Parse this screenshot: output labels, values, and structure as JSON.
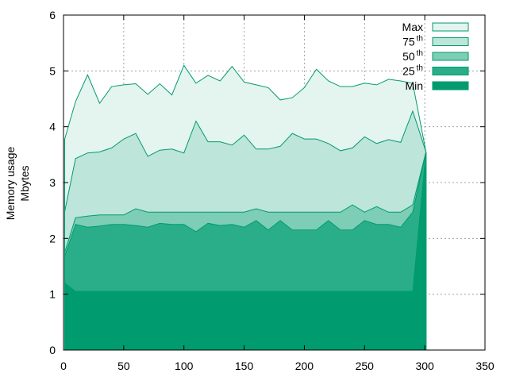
{
  "chart_data": {
    "type": "area",
    "title": "",
    "xlabel": "",
    "ylabel_lines": [
      "Memory usage",
      "Mbytes"
    ],
    "xlim": [
      0,
      350
    ],
    "ylim": [
      0,
      6
    ],
    "x_ticks": [
      "0",
      "50",
      "100",
      "150",
      "200",
      "250",
      "300",
      "350"
    ],
    "y_ticks": [
      "0",
      "1",
      "2",
      "3",
      "4",
      "5",
      "6"
    ],
    "grid": true,
    "legend_position": "top-right",
    "x": [
      1,
      10,
      20,
      30,
      40,
      50,
      60,
      70,
      80,
      90,
      100,
      110,
      120,
      130,
      140,
      150,
      160,
      170,
      180,
      190,
      200,
      210,
      220,
      230,
      240,
      250,
      260,
      270,
      280,
      290,
      301
    ],
    "series": [
      {
        "name": "Max",
        "sup": "",
        "color": "#e4f4ef",
        "values": [
          3.78,
          4.45,
          4.93,
          4.42,
          4.72,
          4.75,
          4.77,
          4.58,
          4.77,
          4.57,
          5.1,
          4.78,
          4.92,
          4.82,
          5.08,
          4.8,
          4.75,
          4.7,
          4.48,
          4.52,
          4.7,
          5.03,
          4.82,
          4.72,
          4.72,
          4.78,
          4.75,
          4.85,
          4.82,
          4.78,
          3.55
        ]
      },
      {
        "name": "75",
        "sup": "th",
        "color": "#bde5da",
        "values": [
          2.48,
          3.43,
          3.53,
          3.55,
          3.62,
          3.78,
          3.88,
          3.47,
          3.58,
          3.6,
          3.53,
          4.1,
          3.73,
          3.73,
          3.67,
          3.85,
          3.6,
          3.6,
          3.65,
          3.88,
          3.78,
          3.78,
          3.7,
          3.57,
          3.62,
          3.82,
          3.7,
          3.77,
          3.72,
          4.28,
          3.55
        ]
      },
      {
        "name": "50",
        "sup": "th",
        "color": "#7dceb4",
        "values": [
          1.75,
          2.37,
          2.4,
          2.42,
          2.42,
          2.42,
          2.53,
          2.47,
          2.47,
          2.47,
          2.47,
          2.47,
          2.47,
          2.47,
          2.47,
          2.47,
          2.53,
          2.47,
          2.47,
          2.47,
          2.47,
          2.47,
          2.47,
          2.47,
          2.6,
          2.47,
          2.57,
          2.47,
          2.47,
          2.6,
          3.55
        ]
      },
      {
        "name": "25",
        "sup": "th",
        "color": "#2aae89",
        "values": [
          1.68,
          2.25,
          2.2,
          2.22,
          2.25,
          2.25,
          2.23,
          2.2,
          2.27,
          2.25,
          2.25,
          2.12,
          2.27,
          2.23,
          2.25,
          2.2,
          2.32,
          2.15,
          2.32,
          2.15,
          2.15,
          2.15,
          2.32,
          2.15,
          2.15,
          2.32,
          2.25,
          2.25,
          2.2,
          2.47,
          3.55
        ]
      },
      {
        "name": "Min",
        "sup": "",
        "color": "#009b6f",
        "values": [
          1.2,
          1.05,
          1.05,
          1.05,
          1.05,
          1.05,
          1.05,
          1.05,
          1.05,
          1.05,
          1.05,
          1.05,
          1.05,
          1.05,
          1.05,
          1.05,
          1.05,
          1.05,
          1.05,
          1.05,
          1.05,
          1.05,
          1.05,
          1.05,
          1.05,
          1.05,
          1.05,
          1.05,
          1.05,
          1.05,
          3.55
        ]
      }
    ]
  }
}
